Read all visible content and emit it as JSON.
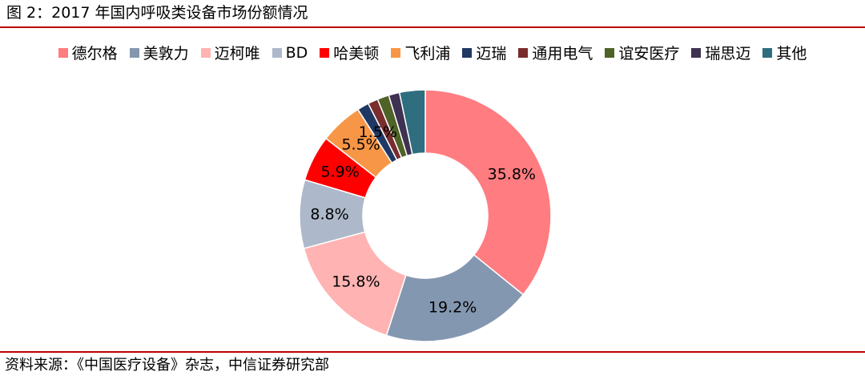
{
  "title": "图 2：2017 年国内呼吸类设备市场份额情况",
  "source": "资料来源：《中国医疗设备》杂志，中信证券研究部",
  "chart_data": {
    "type": "pie",
    "donut": true,
    "title": "图 2：2017 年国内呼吸类设备市场份额情况",
    "legend_position": "top",
    "unit": "%",
    "categories": [
      "德尔格",
      "美敦力",
      "迈柯唯",
      "BD",
      "哈美顿",
      "飞利浦",
      "迈瑞",
      "通用电气",
      "谊安医疗",
      "瑞思迈",
      "其他"
    ],
    "values": [
      35.8,
      19.2,
      15.8,
      8.8,
      5.9,
      5.5,
      1.5,
      1.3,
      1.5,
      1.4,
      3.3
    ],
    "data_labels": [
      "35.8%",
      "19.2%",
      "15.8%",
      "8.8%",
      "5.9%",
      "5.5%",
      "1.5%",
      null,
      null,
      null,
      null
    ],
    "colors": [
      "#ff7c80",
      "#8497b0",
      "#ffb3b3",
      "#adb9ca",
      "#ff0000",
      "#f79646",
      "#1f3864",
      "#7b2c2c",
      "#4f6228",
      "#3f3151",
      "#2e6e7e"
    ]
  }
}
